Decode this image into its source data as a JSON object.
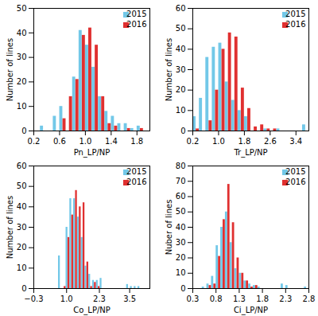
{
  "chart_data": [
    {
      "type": "bar",
      "xlabel": "Pn_LP/NP",
      "ylabel": "Number of lines",
      "x": [
        0.35,
        0.45,
        0.55,
        0.65,
        0.75,
        0.85,
        0.95,
        1.05,
        1.15,
        1.25,
        1.35,
        1.45,
        1.55,
        1.65,
        1.75,
        1.85
      ],
      "series": [
        {
          "name": "2015",
          "color": "#72C8E8",
          "values": [
            2,
            0,
            6,
            10,
            0,
            22,
            41,
            35,
            26,
            14,
            8,
            6,
            3,
            3,
            1,
            2
          ]
        },
        {
          "name": "2016",
          "color": "#E03030",
          "values": [
            0,
            0,
            0,
            5,
            14,
            21,
            39,
            42,
            35,
            14,
            3,
            2,
            0,
            1,
            0,
            1
          ]
        }
      ],
      "xlim": [
        0.2,
        2.0
      ],
      "ylim": [
        0,
        50
      ],
      "xticks": [
        0.2,
        0.6,
        {
          "value": 1.0,
          "label": "1.0"
        },
        1.4,
        1.8
      ],
      "yticks": [
        0,
        10,
        20,
        30,
        40,
        50
      ],
      "legend": "upper right",
      "grid": false
    },
    {
      "type": "bar",
      "xlabel": "Tr_LP/NP",
      "ylabel": "Number of lines",
      "x": [
        0.3,
        0.5,
        0.7,
        0.9,
        1.1,
        1.3,
        1.5,
        1.7,
        1.9,
        2.1,
        2.3,
        2.5,
        2.7,
        2.9,
        3.1,
        3.3,
        3.5,
        3.7
      ],
      "series": [
        {
          "name": "2015",
          "color": "#72C8E8",
          "values": [
            7,
            16,
            36,
            41,
            43,
            24,
            15,
            10,
            7,
            0,
            0,
            1,
            0,
            1,
            0,
            0,
            0,
            3
          ]
        },
        {
          "name": "2016",
          "color": "#E03030",
          "values": [
            1,
            0,
            5,
            20,
            40,
            48,
            46,
            21,
            11,
            2,
            3,
            1,
            1,
            0,
            0,
            0,
            0,
            0
          ]
        }
      ],
      "xlim": [
        0.2,
        3.8
      ],
      "ylim": [
        0,
        60
      ],
      "xticks": [
        0.2,
        {
          "value": 1.0,
          "label": "1.0"
        },
        1.8,
        2.6,
        3.4
      ],
      "yticks": [
        0,
        10,
        20,
        30,
        40,
        50,
        60
      ],
      "legend": "upper right",
      "grid": false
    },
    {
      "type": "bar",
      "xlabel": "Co_LP/NP",
      "ylabel": "Number of lines",
      "x": [
        0.75,
        0.9,
        1.05,
        1.2,
        1.35,
        1.5,
        1.65,
        1.8,
        1.95,
        2.1,
        2.25,
        2.4,
        3.45,
        3.6,
        3.75,
        3.9,
        4.05
      ],
      "series": [
        {
          "name": "2015",
          "color": "#72C8E8",
          "values": [
            16,
            0,
            30,
            44,
            44,
            35,
            25,
            11,
            7,
            4,
            4,
            5,
            2,
            1,
            1,
            1,
            0
          ]
        },
        {
          "name": "2016",
          "color": "#E03030",
          "values": [
            0,
            1,
            25,
            36,
            48,
            40,
            42,
            13,
            1,
            3,
            1,
            0,
            0,
            0,
            0,
            0,
            0
          ]
        }
      ],
      "xlim": [
        -0.3,
        4.3
      ],
      "ylim": [
        0,
        60
      ],
      "xticks": [
        -0.3,
        {
          "value": 1.0,
          "label": "1.0"
        },
        2.3,
        3.5
      ],
      "yticks": [
        0,
        10,
        20,
        30,
        40,
        50,
        60
      ],
      "legend": "upper right",
      "grid": false
    },
    {
      "type": "bar",
      "xlabel": "Ci_LP/NP",
      "ylabel": "Nuber of lines",
      "x": [
        0.55,
        0.65,
        0.75,
        0.85,
        0.95,
        1.05,
        1.15,
        1.25,
        1.35,
        1.45,
        1.55,
        1.65,
        1.75,
        1.85,
        2.25,
        2.35,
        2.75
      ],
      "series": [
        {
          "name": "2015",
          "color": "#72C8E8",
          "values": [
            1,
            3,
            8,
            28,
            40,
            50,
            30,
            13,
            10,
            5,
            3,
            2,
            1,
            0,
            3,
            2,
            1
          ]
        },
        {
          "name": "2016",
          "color": "#E03030",
          "values": [
            0,
            2,
            3,
            21,
            45,
            68,
            43,
            20,
            10,
            5,
            1,
            2,
            0,
            0,
            0,
            0,
            0
          ]
        }
      ],
      "xlim": [
        0.3,
        2.8
      ],
      "ylim": [
        0,
        80
      ],
      "xticks": [
        0.3,
        0.8,
        1.3,
        1.8,
        2.3,
        2.8
      ],
      "yticks": [
        0,
        10,
        20,
        30,
        40,
        50,
        60,
        70,
        80
      ],
      "legend": "upper right",
      "grid": false
    }
  ]
}
